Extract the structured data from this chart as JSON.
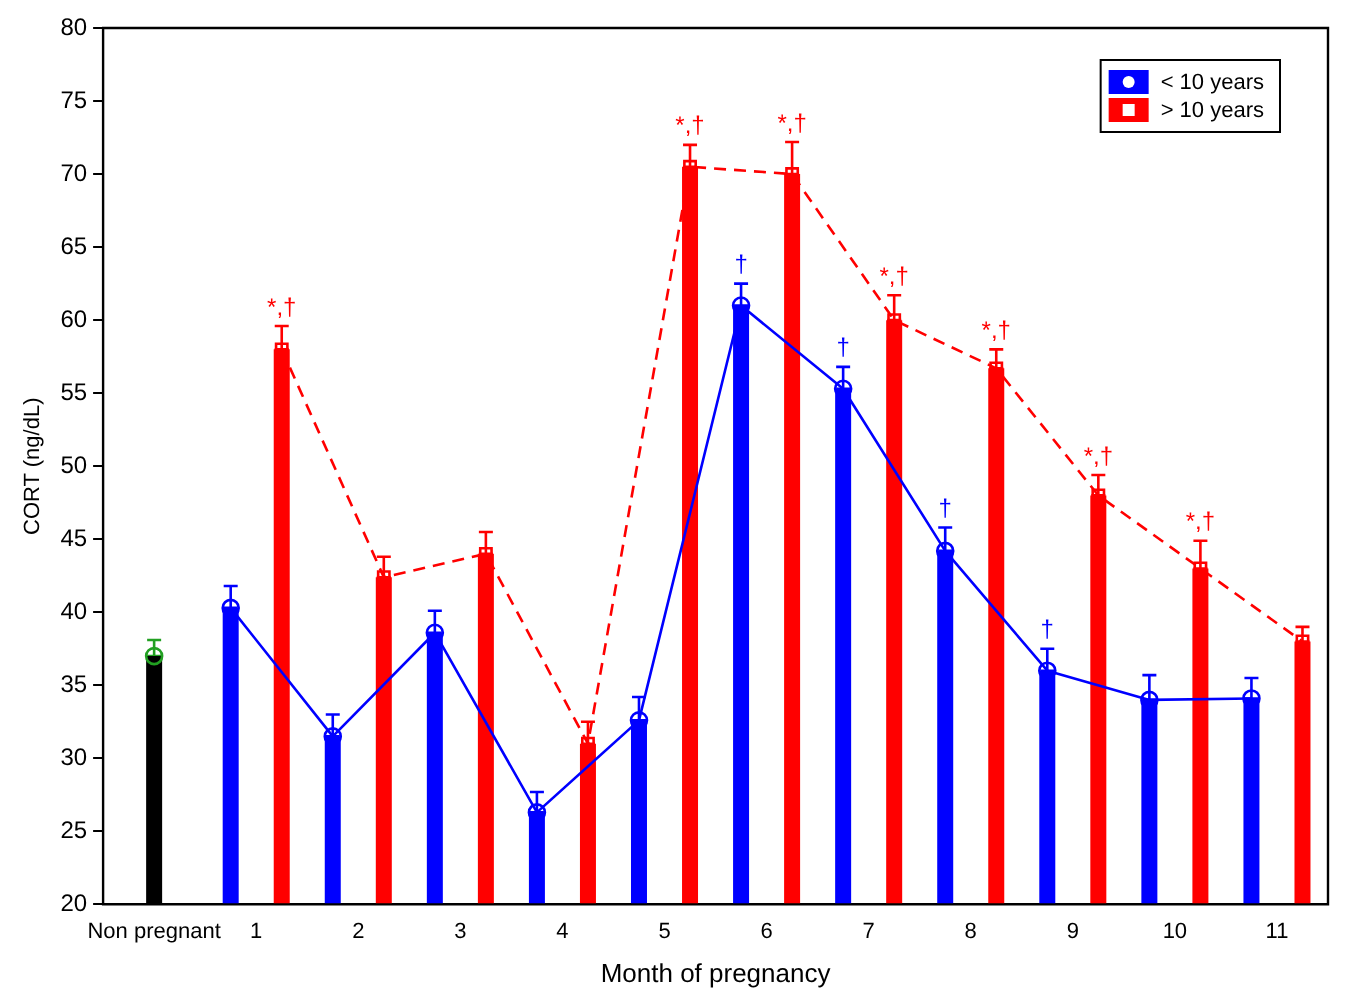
{
  "chart_data": {
    "type": "bar",
    "xlabel": "Month of pregnancy",
    "ylabel": "CORT (ng/dL)",
    "categories": [
      "Non pregnant",
      "1",
      "2",
      "3",
      "4",
      "5",
      "6",
      "7",
      "8",
      "9",
      "10",
      "11"
    ],
    "ylim": [
      20,
      80
    ],
    "yticks": [
      20,
      25,
      30,
      35,
      40,
      45,
      50,
      55,
      60,
      65,
      70,
      75,
      80
    ],
    "grid": false,
    "legend": "top right",
    "series": [
      {
        "color": "#000000",
        "values": [
          37.0,
          null,
          null,
          null,
          null,
          null,
          null,
          null,
          null,
          null,
          null,
          null
        ]
      },
      {
        "type": "scatter",
        "color": "#22a022",
        "x": [
          "Non pregnant"
        ],
        "values": [
          37.0
        ],
        "errors": [
          [
            37.0,
            38.1
          ]
        ],
        "marker": "circle"
      },
      {
        "name": "< 10 years",
        "color": "#0000ff",
        "values": [
          null,
          40.3,
          31.5,
          38.6,
          26.3,
          32.6,
          61.0,
          55.3,
          44.2,
          36.0,
          34.0,
          34.1
        ],
        "errors": [
          null,
          [
            40.3,
            41.8
          ],
          [
            31.5,
            33.0
          ],
          [
            38.6,
            40.1
          ],
          [
            26.3,
            27.7
          ],
          [
            32.6,
            34.2
          ],
          [
            61.0,
            62.5
          ],
          [
            55.3,
            56.8
          ],
          [
            44.2,
            45.8
          ],
          [
            36.0,
            37.5
          ],
          [
            34.0,
            35.7
          ],
          [
            34.1,
            35.5
          ]
        ],
        "value_labels": [
          null,
          null,
          null,
          null,
          null,
          null,
          "†",
          "†",
          "†",
          "†",
          null,
          null
        ]
      },
      {
        "name": "> 10 years",
        "color": "#ff0000",
        "values": [
          null,
          58.0,
          42.4,
          44.0,
          31.0,
          70.5,
          70.0,
          60.0,
          56.7,
          48.0,
          43.0,
          38.0
        ],
        "errors": [
          null,
          [
            58.0,
            59.6
          ],
          [
            42.4,
            43.8
          ],
          [
            44.0,
            45.5
          ],
          [
            31.0,
            32.5
          ],
          [
            70.5,
            72.0
          ],
          [
            70.0,
            72.2
          ],
          [
            60.0,
            61.7
          ],
          [
            56.7,
            58.0
          ],
          [
            48.0,
            49.4
          ],
          [
            43.0,
            44.9
          ],
          [
            38.0,
            39.0
          ]
        ],
        "value_labels": [
          null,
          "*,†",
          null,
          null,
          null,
          "*,†",
          "*,†",
          "*,†",
          "*,†",
          "*,†",
          "*,†",
          null
        ]
      },
      {
        "type": "line",
        "color": "#0000ff",
        "marker": "circle",
        "line_style": "solid",
        "values": [
          null,
          40.3,
          31.5,
          38.6,
          26.3,
          32.6,
          61.0,
          55.3,
          44.2,
          36.0,
          34.0,
          34.1
        ]
      },
      {
        "type": "line",
        "color": "#ff0000",
        "marker": "square",
        "line_style": "dashed",
        "values": [
          null,
          58.0,
          42.4,
          44.0,
          31.0,
          70.5,
          70.0,
          60.0,
          56.7,
          48.0,
          43.0,
          38.0
        ]
      }
    ]
  }
}
